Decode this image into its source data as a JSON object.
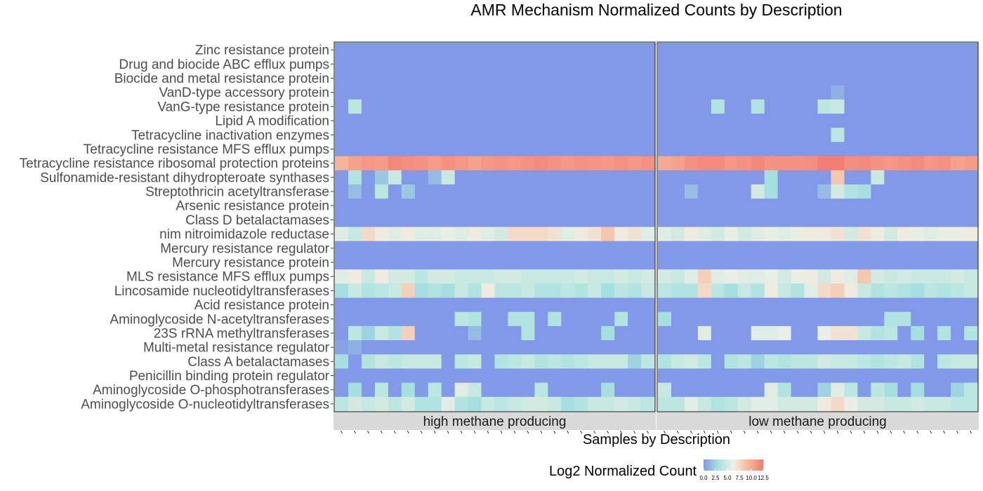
{
  "chart_data": {
    "type": "heatmap",
    "title": "AMR Mechanism Normalized Counts by Description",
    "xlabel": "Samples by Description",
    "ylabel": "",
    "facets": [
      "high methane producing",
      "low methane producing"
    ],
    "samples_per_facet": 24,
    "rows": [
      "Zinc resistance protein",
      "Drug and biocide ABC efflux pumps",
      "Biocide and metal resistance protein",
      "VanD-type accessory protein",
      "VanG-type resistance protein",
      "Lipid A modification",
      "Tetracycline inactivation enzymes",
      "Tetracycline resistance MFS efflux pumps",
      "Tetracycline resistance ribosomal protection proteins",
      "Sulfonamide-resistant dihydropteroate synthases",
      "Streptothricin acetyltransferase",
      "Arsenic resistance protein",
      "Class D betalactamases",
      "nim nitroimidazole reductase",
      "Mercury resistance regulator",
      "Mercury resistance protein",
      "MLS resistance MFS efflux pumps",
      "Lincosamide nucleotidyltransferases",
      "Acid resistance protein",
      "Aminoglycoside N-acetyltransferases",
      "23S rRNA methyltransferases",
      "Multi-metal resistance regulator",
      "Class A betalactamases",
      "Penicillin binding protein regulator",
      "Aminoglycoside O-phosphotransferases",
      "Aminoglycoside O-nucleotidyltransferases"
    ],
    "values": {
      "high methane producing": [
        [
          0,
          0,
          0,
          0,
          0,
          0,
          0,
          0,
          0,
          0,
          0,
          0,
          0,
          0,
          0,
          0,
          0,
          0,
          0,
          0,
          0,
          0,
          0,
          0
        ],
        [
          0,
          0,
          0,
          0,
          0,
          0,
          0,
          0,
          0,
          0,
          0,
          0,
          0,
          0,
          0,
          0,
          0,
          0,
          0,
          0,
          0,
          0,
          0,
          0
        ],
        [
          0,
          0,
          0,
          0,
          0,
          0,
          0,
          0,
          0,
          0,
          0,
          0,
          0,
          0,
          0,
          0,
          0,
          0,
          0,
          0,
          0,
          0,
          0,
          0
        ],
        [
          0,
          0,
          0,
          0,
          0,
          0,
          0,
          0,
          0,
          0,
          0,
          0,
          0,
          0,
          0,
          0,
          0,
          0,
          0,
          0,
          0,
          0,
          0,
          0
        ],
        [
          0,
          4,
          0,
          0,
          0,
          0,
          0,
          0,
          0,
          0,
          0,
          0,
          0,
          0,
          0,
          0,
          0,
          0,
          0,
          0,
          0,
          0,
          0,
          0
        ],
        [
          0,
          0,
          0,
          0,
          0,
          0,
          0,
          0,
          0,
          0,
          0,
          0,
          0,
          0,
          0,
          0,
          0,
          0,
          0,
          0,
          0,
          0,
          0,
          0
        ],
        [
          0,
          0,
          0,
          0,
          0,
          0,
          0,
          0,
          0,
          0,
          0,
          0,
          0,
          0,
          0,
          0,
          0,
          0,
          0,
          0,
          0,
          0,
          0,
          0
        ],
        [
          0,
          0,
          0,
          0,
          0,
          0,
          0,
          0,
          0,
          0,
          0,
          0,
          0,
          0,
          0,
          0,
          0,
          0,
          0,
          0,
          0,
          0,
          0,
          0
        ],
        [
          9.5,
          10.5,
          11.0,
          10.8,
          11.8,
          11.5,
          11.2,
          10.8,
          11.3,
          11.0,
          10.5,
          11.0,
          11.2,
          11.0,
          11.3,
          11.6,
          11.2,
          10.9,
          11.2,
          11.1,
          11.0,
          11.3,
          11.0,
          11.3
        ],
        [
          0,
          3.5,
          0,
          2,
          4.5,
          0,
          0,
          1.5,
          4.5,
          0,
          0,
          0,
          0,
          0,
          0,
          0,
          0,
          0,
          0,
          0,
          0,
          0,
          0,
          0
        ],
        [
          0,
          1.5,
          0,
          4,
          0,
          2,
          0,
          0,
          0,
          0,
          0,
          0,
          0,
          0,
          0,
          0,
          0,
          0,
          0,
          0,
          0,
          0,
          0,
          0
        ],
        [
          0,
          0,
          0,
          0,
          0,
          0,
          0,
          0,
          0,
          0,
          0,
          0,
          0,
          0,
          0,
          0,
          0,
          0,
          0,
          0,
          0,
          0,
          0,
          0
        ],
        [
          0,
          0,
          0,
          0,
          0,
          0,
          0,
          0,
          0,
          0,
          0,
          0,
          0,
          0,
          0,
          0,
          0,
          0,
          0,
          0,
          0,
          0,
          0,
          0
        ],
        [
          5.5,
          4.5,
          7.5,
          6.5,
          5.5,
          6.5,
          5.5,
          5.5,
          6.0,
          5.5,
          6.5,
          5.5,
          5.0,
          7.5,
          7.5,
          7.5,
          7.0,
          5.5,
          6.5,
          7.0,
          8.5,
          6.5,
          7.0,
          5.5
        ],
        [
          0,
          0,
          0,
          0,
          0,
          0,
          0,
          0,
          0,
          0,
          0,
          0,
          0,
          0,
          0,
          0,
          0,
          0,
          0,
          0,
          0,
          0,
          0,
          0
        ],
        [
          0,
          0,
          0,
          0,
          0,
          0,
          0,
          0,
          0,
          0,
          0,
          0,
          0,
          0,
          0,
          0,
          0,
          0,
          0,
          0,
          0,
          0,
          0,
          0
        ],
        [
          5.5,
          6.5,
          4.5,
          6.5,
          5.0,
          5.0,
          4.0,
          5.0,
          5.0,
          4.5,
          4.5,
          4.5,
          5.0,
          5.0,
          4.5,
          4.5,
          4.5,
          4.5,
          5.0,
          4.5,
          4.5,
          5.0,
          4.5,
          5.0
        ],
        [
          3.0,
          4.5,
          3.5,
          4.0,
          4.5,
          8.0,
          3.0,
          3.5,
          3.0,
          4.5,
          3.5,
          6.5,
          4.0,
          4.0,
          4.5,
          3.5,
          3.5,
          4.0,
          3.5,
          4.5,
          3.0,
          4.0,
          3.5,
          4.5
        ],
        [
          0,
          0,
          0,
          0,
          0,
          0,
          0,
          0,
          0,
          0,
          0,
          0,
          0,
          0,
          0,
          0,
          0,
          0,
          0,
          0,
          0,
          0,
          0,
          0
        ],
        [
          0,
          0,
          0,
          0,
          0,
          0,
          0,
          0,
          0,
          4,
          3.5,
          0,
          0,
          3.5,
          3.5,
          0,
          3.5,
          0,
          0,
          0,
          0,
          3.5,
          0,
          0
        ],
        [
          0,
          4,
          2.5,
          4.5,
          3.5,
          8.0,
          0,
          0,
          0,
          0,
          1.5,
          0,
          0,
          0,
          3.5,
          0,
          0,
          0,
          0,
          0,
          3,
          0,
          0,
          0
        ],
        [
          0.5,
          1,
          0,
          0,
          0,
          0,
          0,
          0,
          0,
          0,
          0,
          0,
          0,
          0,
          0,
          0,
          0,
          0,
          0,
          0,
          0,
          0,
          0,
          0
        ],
        [
          3.0,
          0,
          3.5,
          4.5,
          4.0,
          4.5,
          4.5,
          4.5,
          0,
          4.0,
          4.5,
          0,
          3.5,
          4.0,
          4.5,
          3.5,
          4.0,
          3.5,
          4.0,
          4.5,
          4.5,
          4.5,
          2.5,
          4.0
        ],
        [
          0,
          0,
          0,
          0,
          0,
          0,
          0,
          0,
          0,
          0,
          0,
          0,
          0,
          0,
          0,
          0,
          0,
          0,
          0,
          0,
          0,
          0,
          0,
          0
        ],
        [
          0,
          3,
          0,
          4,
          0,
          3,
          0,
          4,
          0,
          5.5,
          4.5,
          0,
          0,
          0,
          0,
          4,
          0,
          0,
          0,
          0,
          3,
          0,
          0,
          0
        ],
        [
          4.0,
          5.0,
          4.5,
          5.0,
          4.0,
          5.0,
          3.5,
          3.5,
          5.5,
          3.5,
          3.0,
          4.5,
          4.0,
          4.5,
          5.0,
          5.0,
          4.5,
          3.0,
          3.5,
          4.5,
          4.5,
          5.0,
          4.5,
          4.0
        ]
      ],
      "low methane producing": [
        [
          0,
          0,
          0,
          0,
          0,
          0,
          0,
          0,
          0,
          0,
          0,
          0,
          0,
          0,
          0,
          0,
          0,
          0,
          0,
          0,
          0,
          0,
          0,
          0
        ],
        [
          0,
          0,
          0,
          0,
          0,
          0,
          0,
          0,
          0,
          0,
          0,
          0,
          0,
          0,
          0,
          0,
          0,
          0,
          0,
          0,
          0,
          0,
          0,
          0
        ],
        [
          0,
          0,
          0,
          0,
          0,
          0,
          0,
          0,
          0,
          0,
          0,
          0,
          0,
          0,
          0,
          0,
          0,
          0,
          0,
          0,
          0,
          0,
          0,
          0
        ],
        [
          0,
          0,
          0,
          0,
          0,
          0,
          0,
          0,
          0,
          0,
          0,
          0,
          0,
          1.0,
          0,
          0,
          0,
          0,
          0,
          0,
          0,
          0,
          0,
          0
        ],
        [
          0,
          0,
          0,
          0,
          3.5,
          0,
          0,
          3.5,
          0,
          0,
          0,
          0,
          4.0,
          4.5,
          0,
          0,
          0,
          0,
          0,
          0,
          0,
          0,
          0,
          0
        ],
        [
          0,
          0,
          0,
          0,
          0,
          0,
          0,
          0,
          0,
          0,
          0,
          0,
          0,
          0,
          0,
          0,
          0,
          0,
          0,
          0,
          0,
          0,
          0,
          0
        ],
        [
          0,
          0,
          0,
          0,
          0,
          0,
          0,
          0,
          0,
          0,
          0,
          0,
          0,
          4.0,
          0,
          0,
          0,
          0,
          0,
          0,
          0,
          0,
          0,
          0
        ],
        [
          0,
          0,
          0,
          0,
          0,
          0,
          0,
          0,
          0,
          0,
          0,
          0,
          0,
          0,
          0,
          0,
          0,
          0,
          0,
          0,
          0,
          0,
          0,
          0
        ],
        [
          10.0,
          10.5,
          11.3,
          11.6,
          11.6,
          11.0,
          11.2,
          11.8,
          11.2,
          11.3,
          11.2,
          11.5,
          12.3,
          12.3,
          11.5,
          11.7,
          11.2,
          11.0,
          11.3,
          11.6,
          11.0,
          11.2,
          10.5,
          10.8
        ],
        [
          0,
          0,
          0,
          0,
          0,
          0,
          0,
          0,
          3.0,
          0,
          0,
          0,
          0,
          8.5,
          0,
          0,
          4.5,
          0,
          0,
          0,
          0,
          0,
          0,
          0
        ],
        [
          0,
          0,
          1.5,
          0,
          0,
          0,
          0,
          5.0,
          3.0,
          0,
          0,
          0,
          1.5,
          5.0,
          3.5,
          3.0,
          0,
          0,
          0,
          0,
          0,
          0,
          0,
          0
        ],
        [
          0,
          0,
          0,
          0,
          0,
          0,
          0,
          0,
          0,
          0,
          0,
          0,
          0,
          0,
          0,
          0,
          0,
          0,
          0,
          0,
          0,
          0,
          0,
          0
        ],
        [
          0,
          0,
          0,
          0,
          0,
          0,
          0,
          0,
          0,
          0,
          0,
          0,
          0,
          0,
          0,
          0,
          0,
          0,
          0,
          0,
          0,
          0,
          0,
          0
        ],
        [
          5.5,
          5.0,
          6.5,
          5.5,
          5.0,
          6.0,
          5.0,
          5.5,
          6.0,
          5.5,
          6.0,
          6.5,
          6.5,
          7.0,
          5.0,
          7.0,
          6.5,
          5.0,
          6.5,
          6.0,
          5.5,
          6.0,
          6.0,
          6.5
        ],
        [
          0,
          0,
          0,
          0,
          0,
          0,
          0,
          0,
          0,
          0,
          0,
          0,
          0,
          0,
          0,
          0,
          0,
          0,
          0,
          0,
          0,
          0,
          0,
          0
        ],
        [
          0,
          0,
          0,
          0,
          0,
          0,
          0,
          0,
          0,
          0,
          0,
          0,
          0,
          0,
          0,
          0,
          0,
          0,
          0,
          0,
          0,
          0,
          0,
          0
        ],
        [
          5.0,
          4.5,
          5.5,
          8.0,
          5.5,
          6.0,
          5.5,
          5.5,
          6.0,
          5.0,
          6.0,
          6.5,
          5.0,
          6.5,
          5.5,
          8.5,
          5.0,
          4.5,
          5.0,
          4.5,
          4.5,
          4.5,
          5.0,
          4.5
        ],
        [
          4.0,
          3.5,
          3.5,
          7.5,
          4.0,
          3.0,
          4.5,
          3.5,
          6.5,
          4.5,
          3.5,
          5.5,
          7.5,
          8.0,
          6.5,
          4.5,
          3.5,
          4.0,
          3.5,
          3.0,
          4.0,
          3.5,
          4.0,
          4.5
        ],
        [
          0,
          0,
          0,
          0,
          0,
          0,
          0,
          0,
          0,
          0,
          0,
          0,
          0,
          0,
          0,
          0,
          0,
          0,
          0,
          0,
          0,
          0,
          0,
          0
        ],
        [
          3.0,
          0,
          0,
          0,
          0,
          0,
          0,
          0,
          0,
          0,
          0,
          0,
          0,
          0,
          0,
          0,
          0,
          3.5,
          3.5,
          0,
          0,
          0,
          0,
          0
        ],
        [
          0,
          0,
          0,
          5.5,
          0,
          0,
          0,
          5.5,
          5.5,
          6.0,
          0,
          0,
          6.0,
          7.0,
          7.0,
          4.5,
          3.5,
          4.0,
          0,
          3.0,
          0,
          3.5,
          0,
          3.5
        ],
        [
          0,
          0,
          0,
          0,
          0,
          0,
          0,
          0,
          0,
          0,
          0,
          0,
          0,
          0,
          0,
          0,
          0,
          0,
          0,
          0,
          0,
          0,
          0,
          0
        ],
        [
          3.5,
          4.5,
          5.0,
          4.0,
          0,
          3.5,
          4.0,
          2.5,
          4.0,
          3.5,
          4.0,
          4.0,
          5.0,
          4.5,
          4.5,
          4.0,
          3.5,
          4.0,
          4.5,
          3.5,
          0,
          4.0,
          4.5,
          4.5
        ],
        [
          0,
          0,
          0,
          0,
          0,
          0,
          0,
          0,
          0,
          0,
          0,
          0,
          0,
          0,
          0,
          0,
          0,
          0,
          0,
          0,
          0,
          0,
          0,
          0
        ],
        [
          4.5,
          0,
          0,
          0,
          0,
          0,
          0,
          0,
          5.5,
          3.5,
          0,
          0,
          2.5,
          5.5,
          4.0,
          0,
          4.0,
          3.0,
          0,
          3.0,
          0,
          0,
          2.5,
          4.0
        ],
        [
          4.0,
          4.0,
          5.5,
          4.5,
          3.5,
          4.0,
          5.0,
          5.5,
          5.5,
          5.0,
          5.0,
          5.0,
          6.5,
          7.5,
          6.0,
          5.0,
          5.0,
          4.5,
          4.5,
          5.0,
          4.5,
          4.5,
          4.0,
          4.0
        ]
      ]
    },
    "legend": {
      "title": "Log2 Normalized Count",
      "ticks": [
        "0.0",
        "2.5",
        "5.0",
        "7.5",
        "10.0",
        "12.5"
      ],
      "range": [
        0,
        12.5
      ],
      "placement": "bottom",
      "colors": [
        "#8298e8",
        "#a8e2df",
        "#f0f0e6",
        "#f6b79a",
        "#f47a6f"
      ]
    },
    "grid": false
  }
}
